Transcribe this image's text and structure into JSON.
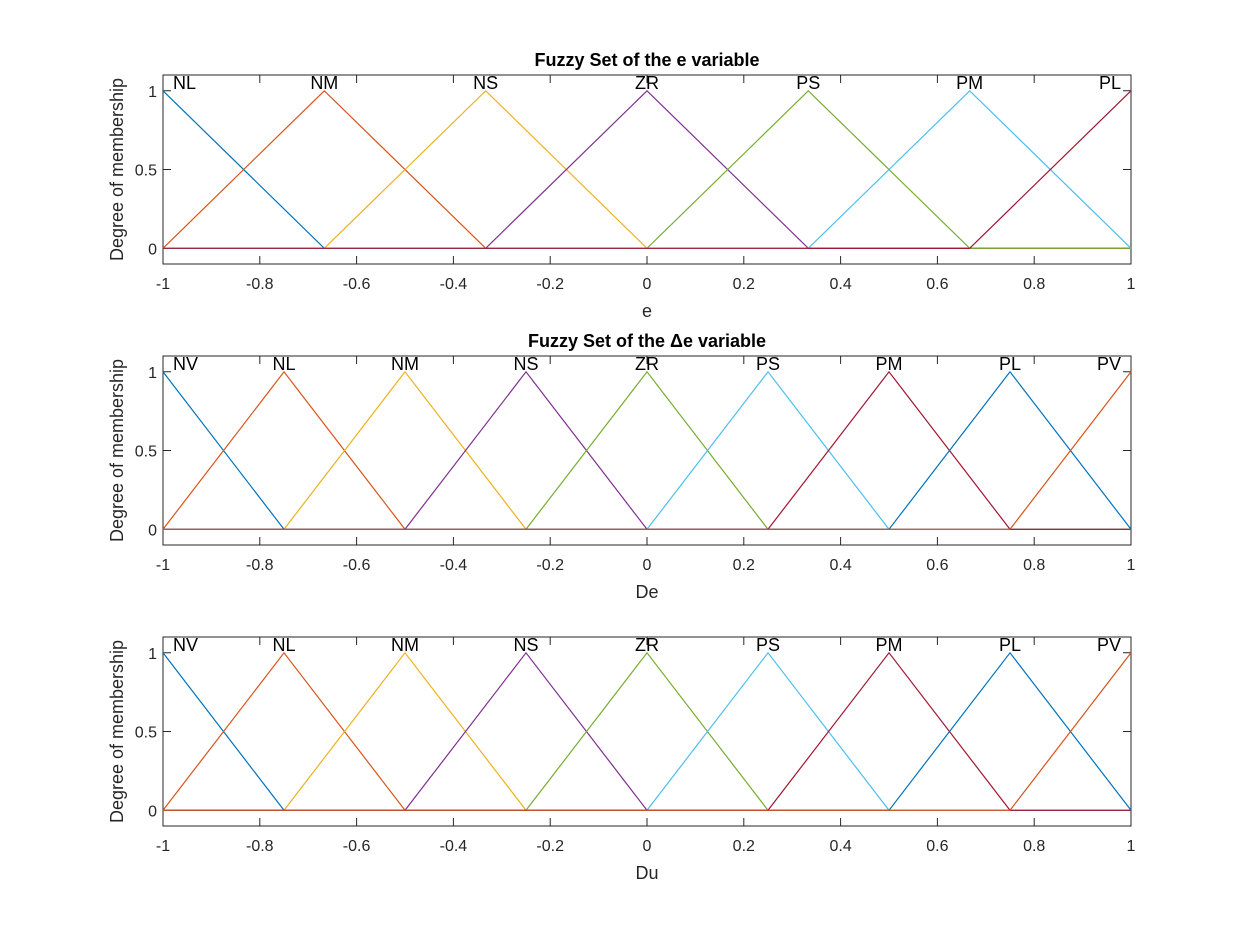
{
  "chart_data": [
    {
      "type": "line",
      "title": "Fuzzy Set of the e variable",
      "xlabel": "e",
      "ylabel": "Degree of membership",
      "xlim": [
        -1,
        1
      ],
      "ylim": [
        -0.1,
        1.1
      ],
      "xticks": [
        "-1",
        "-0.8",
        "-0.6",
        "-0.4",
        "-0.2",
        "0",
        "0.2",
        "0.4",
        "0.6",
        "0.8",
        "1"
      ],
      "yticks": [
        "0",
        "0.5",
        "1"
      ],
      "grid": false,
      "series": [
        {
          "name": "NL",
          "color": "#0072BD",
          "x": [
            -1,
            -0.6667,
            1
          ],
          "y": [
            1,
            0,
            0
          ]
        },
        {
          "name": "NM",
          "color": "#D95319",
          "x": [
            -1,
            -0.6667,
            -0.3333,
            1
          ],
          "y": [
            0,
            1,
            0,
            0
          ]
        },
        {
          "name": "NS",
          "color": "#EDB120",
          "x": [
            -1,
            -0.6667,
            -0.3333,
            0,
            1
          ],
          "y": [
            0,
            0,
            1,
            0,
            0
          ]
        },
        {
          "name": "ZR",
          "color": "#7E2F8E",
          "x": [
            -1,
            -0.3333,
            0,
            0.3333,
            1
          ],
          "y": [
            0,
            0,
            1,
            0,
            0
          ]
        },
        {
          "name": "PS",
          "color": "#77AC30",
          "x": [
            -1,
            0,
            0.3333,
            0.6667,
            1
          ],
          "y": [
            0,
            0,
            1,
            0,
            0
          ]
        },
        {
          "name": "PM",
          "color": "#4DBEEE",
          "x": [
            -1,
            0.3333,
            0.6667,
            1
          ],
          "y": [
            0,
            0,
            1,
            0
          ]
        },
        {
          "name": "PL",
          "color": "#A2142F",
          "x": [
            -1,
            0.6667,
            1
          ],
          "y": [
            0,
            0,
            1
          ]
        }
      ]
    },
    {
      "type": "line",
      "title": "Fuzzy Set of the Δe variable",
      "xlabel": "De",
      "ylabel": "Degree of membership",
      "xlim": [
        -1,
        1
      ],
      "ylim": [
        -0.1,
        1.1
      ],
      "xticks": [
        "-1",
        "-0.8",
        "-0.6",
        "-0.4",
        "-0.2",
        "0",
        "0.2",
        "0.4",
        "0.6",
        "0.8",
        "1"
      ],
      "yticks": [
        "0",
        "0.5",
        "1"
      ],
      "grid": false,
      "series": [
        {
          "name": "NV",
          "color": "#0072BD",
          "x": [
            -1,
            -0.75,
            1
          ],
          "y": [
            1,
            0,
            0
          ]
        },
        {
          "name": "NL",
          "color": "#D95319",
          "x": [
            -1,
            -0.75,
            -0.5,
            1
          ],
          "y": [
            0,
            1,
            0,
            0
          ]
        },
        {
          "name": "NM",
          "color": "#EDB120",
          "x": [
            -1,
            -0.75,
            -0.5,
            -0.25,
            1
          ],
          "y": [
            0,
            0,
            1,
            0,
            0
          ]
        },
        {
          "name": "NS",
          "color": "#7E2F8E",
          "x": [
            -1,
            -0.5,
            -0.25,
            0,
            1
          ],
          "y": [
            0,
            0,
            1,
            0,
            0
          ]
        },
        {
          "name": "ZR",
          "color": "#77AC30",
          "x": [
            -1,
            -0.25,
            0,
            0.25,
            1
          ],
          "y": [
            0,
            0,
            1,
            0,
            0
          ]
        },
        {
          "name": "PS",
          "color": "#4DBEEE",
          "x": [
            -1,
            0,
            0.25,
            0.5,
            1
          ],
          "y": [
            0,
            0,
            1,
            0,
            0
          ]
        },
        {
          "name": "PM",
          "color": "#A2142F",
          "x": [
            -1,
            0.25,
            0.5,
            0.75,
            1
          ],
          "y": [
            0,
            0,
            1,
            0,
            0
          ]
        },
        {
          "name": "PL",
          "color": "#0072BD",
          "x": [
            -1,
            0.5,
            0.75,
            1
          ],
          "y": [
            0,
            0,
            1,
            0
          ]
        },
        {
          "name": "PV",
          "color": "#D95319",
          "x": [
            -1,
            0.75,
            1
          ],
          "y": [
            0,
            0,
            1
          ]
        }
      ]
    },
    {
      "type": "line",
      "title": "",
      "xlabel": "Du",
      "ylabel": "Degree of membership",
      "xlim": [
        -1,
        1
      ],
      "ylim": [
        -0.1,
        1.1
      ],
      "xticks": [
        "-1",
        "-0.8",
        "-0.6",
        "-0.4",
        "-0.2",
        "0",
        "0.2",
        "0.4",
        "0.6",
        "0.8",
        "1"
      ],
      "yticks": [
        "0",
        "0.5",
        "1"
      ],
      "grid": false,
      "series": [
        {
          "name": "NV",
          "color": "#0072BD",
          "x": [
            -1,
            -0.75,
            1
          ],
          "y": [
            1,
            0,
            0
          ]
        },
        {
          "name": "NL",
          "color": "#D95319",
          "x": [
            -1,
            -0.75,
            -0.5,
            1
          ],
          "y": [
            0,
            1,
            0,
            0
          ]
        },
        {
          "name": "NM",
          "color": "#EDB120",
          "x": [
            -1,
            -0.75,
            -0.5,
            -0.25,
            1
          ],
          "y": [
            0,
            0,
            1,
            0,
            0
          ]
        },
        {
          "name": "NS",
          "color": "#7E2F8E",
          "x": [
            -1,
            -0.5,
            -0.25,
            0,
            1
          ],
          "y": [
            0,
            0,
            1,
            0,
            0
          ]
        },
        {
          "name": "ZR",
          "color": "#77AC30",
          "x": [
            -1,
            -0.25,
            0,
            0.25,
            1
          ],
          "y": [
            0,
            0,
            1,
            0,
            0
          ]
        },
        {
          "name": "PS",
          "color": "#4DBEEE",
          "x": [
            -1,
            0,
            0.25,
            0.5,
            1
          ],
          "y": [
            0,
            0,
            1,
            0,
            0
          ]
        },
        {
          "name": "PM",
          "color": "#A2142F",
          "x": [
            -1,
            0.25,
            0.5,
            0.75,
            1
          ],
          "y": [
            0,
            0,
            1,
            0,
            0
          ]
        },
        {
          "name": "PL",
          "color": "#0072BD",
          "x": [
            -1,
            0.5,
            0.75,
            1
          ],
          "y": [
            0,
            0,
            1,
            0
          ]
        },
        {
          "name": "PV",
          "color": "#D95319",
          "x": [
            -1,
            0.75,
            1
          ],
          "y": [
            0,
            0,
            1
          ]
        }
      ]
    }
  ]
}
